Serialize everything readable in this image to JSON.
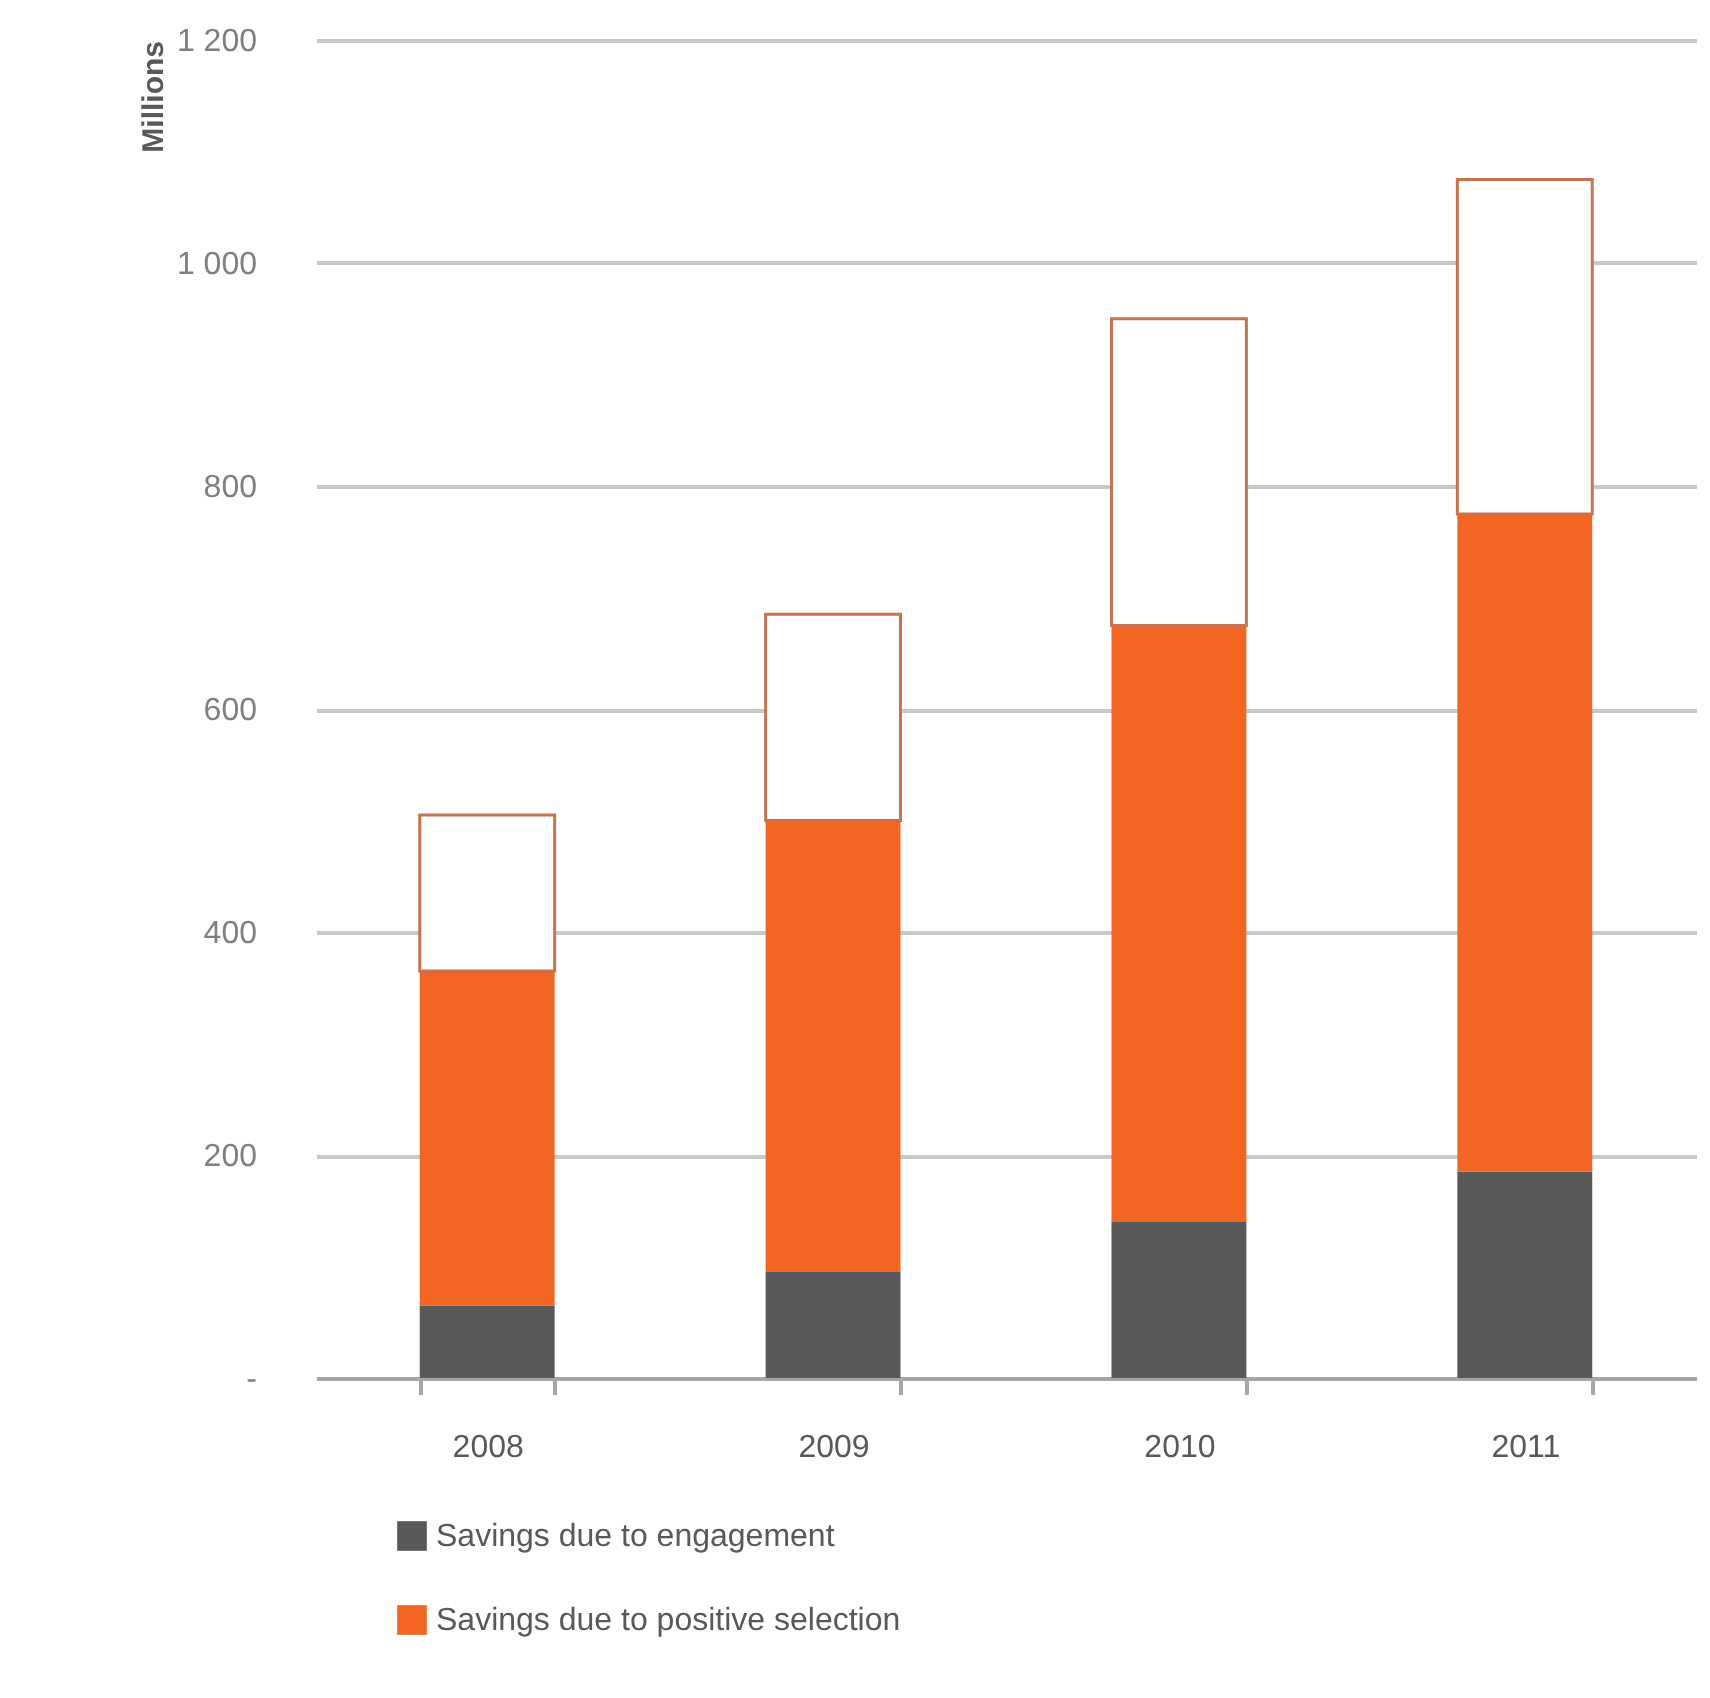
{
  "chart_data": {
    "type": "bar",
    "stacked": true,
    "ylabel": "Millions",
    "categories": [
      "2008",
      "2009",
      "2010",
      "2011"
    ],
    "series": [
      {
        "name": "Savings due to engagement",
        "color": "#595959",
        "values": [
          65,
          95,
          140,
          185
        ]
      },
      {
        "name": "Savings due to positive selection",
        "color": "#f26522",
        "values": [
          300,
          405,
          535,
          590
        ]
      },
      {
        "color": "#ffffff",
        "values": [
          140,
          185,
          275,
          300
        ]
      }
    ],
    "ylim": [
      0,
      1200
    ],
    "yticks": [
      {
        "value": 0,
        "label": "-"
      },
      200,
      400,
      600,
      800,
      {
        "value": 1000,
        "label": "1 000"
      },
      {
        "value": 1200,
        "label": "1 200"
      }
    ],
    "grid": "y",
    "legend": "bottom"
  }
}
